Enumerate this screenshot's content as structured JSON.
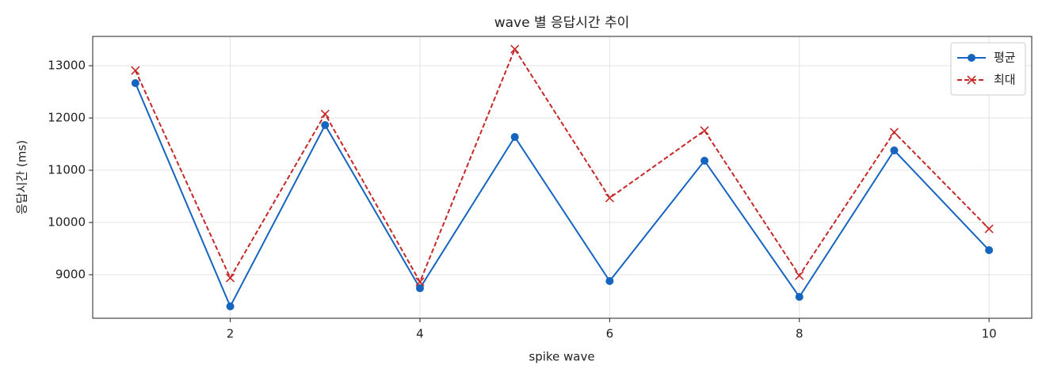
{
  "chart_data": {
    "type": "line",
    "title": "wave 별 응답시간 추이",
    "xlabel": "spike wave",
    "ylabel": "응답시간 (ms)",
    "x": [
      1,
      2,
      3,
      4,
      5,
      6,
      7,
      8,
      9,
      10
    ],
    "series": [
      {
        "name": "평균",
        "color": "#1565c0",
        "marker": "o",
        "linestyle": "solid",
        "values": [
          12667,
          8394,
          11864,
          8742,
          11636,
          8879,
          11182,
          8576,
          11379,
          9470
        ]
      },
      {
        "name": "최대",
        "color": "#c62828",
        "marker": "x",
        "linestyle": "dashed",
        "values": [
          12909,
          8939,
          12076,
          8864,
          13318,
          10470,
          11758,
          8985,
          11727,
          9879
        ]
      }
    ],
    "xlim": [
      0.55,
      10.45
    ],
    "xticks": [
      2,
      4,
      6,
      8,
      10
    ],
    "ylim": [
      8167,
      13561
    ],
    "yticks": [
      9000,
      10000,
      11000,
      12000,
      13000
    ],
    "grid": true,
    "legend": "upper right"
  }
}
